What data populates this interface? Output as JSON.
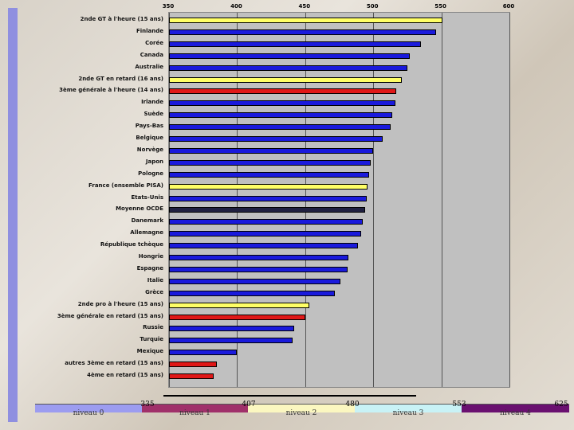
{
  "chart_data": {
    "type": "bar",
    "orientation": "horizontal",
    "x_ticks": [
      "350",
      "400",
      "450",
      "500",
      "550",
      "600"
    ],
    "xlim": [
      350,
      600
    ],
    "grid": "vertical lines at ticks",
    "colors": {
      "blue": "#1a1adc",
      "yellow": "#ffff66",
      "red": "#e01818",
      "black": "#202040"
    },
    "categories": [
      "2nde GT à l'heure (15 ans)",
      "Finlande",
      "Corée",
      "Canada",
      "Australie",
      "2nde GT en retard (16 ans)",
      "3ème générale à l'heure (14 ans)",
      "Irlande",
      "Suède",
      "Pays-Bas",
      "Belgique",
      "Norvège",
      "Japon",
      "Pologne",
      "France (ensemble PISA)",
      "Etats-Unis",
      "Moyenne OCDE",
      "Danemark",
      "Allemagne",
      "République tchèque",
      "Hongrie",
      "Espagne",
      "Italie",
      "Grèce",
      "2nde pro à l'heure (15 ans)",
      "3ème générale en retard (15 ans)",
      "Russie",
      "Turquie",
      "Mexique",
      "autres 3ème en retard (15 ans)",
      "4ème en retard (15 ans)"
    ],
    "values": [
      551,
      546,
      535,
      527,
      525,
      521,
      517,
      516,
      514,
      513,
      507,
      500,
      498,
      497,
      496,
      495,
      494,
      492,
      491,
      489,
      482,
      481,
      476,
      472,
      453,
      450,
      442,
      441,
      400,
      385,
      383
    ],
    "bar_colors": [
      "yellow",
      "blue",
      "blue",
      "blue",
      "blue",
      "yellow",
      "red",
      "blue",
      "blue",
      "blue",
      "blue",
      "blue",
      "blue",
      "blue",
      "yellow",
      "blue",
      "black",
      "blue",
      "blue",
      "blue",
      "blue",
      "blue",
      "blue",
      "blue",
      "yellow",
      "red",
      "blue",
      "blue",
      "blue",
      "red",
      "red"
    ]
  },
  "levels": {
    "thresholds": [
      "335",
      "407",
      "480",
      "553",
      "625"
    ],
    "labels": [
      "niveau 0",
      "niveau 1",
      "niveau 2",
      "niveau 3",
      "niveau 4"
    ],
    "strip_colors": [
      "#9c9cf0",
      "#a0306a",
      "#fbf7c0",
      "#c8f2f6",
      "#6a1070"
    ]
  }
}
